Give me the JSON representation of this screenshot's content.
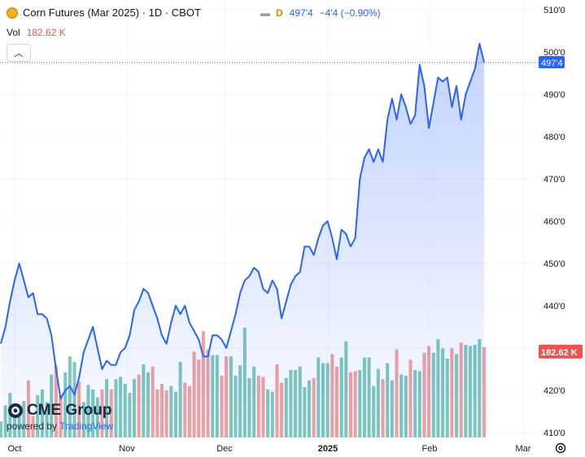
{
  "header": {
    "title": "Corn Futures (Mar 2025) · 1D · CBOT",
    "exchange_badge": "D",
    "last_price": "497'4",
    "change": "−4'4 (−0.90%)",
    "volume_label": "Vol",
    "volume_value": "182.62 K"
  },
  "logo": {
    "brand": "CME Group",
    "powered_prefix": "powered by",
    "powered_brand": "TradingView"
  },
  "icons": {
    "coin": "corn-coin-icon",
    "flag": "flag-icon",
    "collapse": "chevron-up-icon",
    "settings": "gear-icon"
  },
  "colors": {
    "line": "#2962ff",
    "area": "#2962ff",
    "volume_up": "#7fc8bd",
    "volume_down": "#f2a1a0",
    "price_badge": "#2962ff",
    "volume_badge": "#ef5350"
  },
  "chart_data": {
    "type": "area",
    "symbol": "Corn Futures (Mar 2025)",
    "interval": "1D",
    "ylim": [
      410,
      510
    ],
    "y_ticks": [
      "510'0",
      "500'0",
      "490'0",
      "480'0",
      "470'0",
      "460'0",
      "450'0",
      "440'0",
      "430'0",
      "420'0",
      "410'0"
    ],
    "x_ticks": [
      "Oct",
      "Nov",
      "Dec",
      "2025",
      "Feb",
      "Mar"
    ],
    "current_price_label": "497'4",
    "current_price": 497.5,
    "current_volume_label": "182.62 K",
    "price": [
      431,
      435,
      441,
      446,
      450,
      446,
      442,
      443,
      438,
      438,
      437,
      433,
      425,
      418,
      420,
      421,
      419,
      423,
      429,
      432,
      435,
      430,
      425,
      427,
      426,
      426,
      429,
      430,
      433,
      439,
      441,
      444,
      443,
      440,
      437,
      433,
      431,
      436,
      440,
      438,
      440,
      436,
      434,
      432,
      428,
      428,
      433,
      433,
      432,
      430,
      434,
      438,
      443,
      446,
      447,
      449,
      448,
      444,
      443,
      446,
      444,
      437,
      441,
      445,
      447,
      448,
      454,
      454,
      452,
      456,
      459,
      460,
      456,
      451,
      458,
      457,
      454,
      456,
      470,
      475,
      477,
      474,
      477,
      474,
      484,
      489,
      484,
      490,
      487,
      483,
      485,
      497,
      492,
      482,
      488,
      494,
      493,
      494,
      487,
      492,
      484,
      490,
      493,
      496,
      502,
      497.5
    ],
    "volume_direction": [
      "up",
      "up",
      "up",
      "up",
      "up",
      "up",
      "down",
      "down",
      "up",
      "up",
      "up",
      "up",
      "down",
      "down",
      "up",
      "up",
      "up",
      "down",
      "up",
      "up",
      "up",
      "up",
      "down",
      "up",
      "down",
      "up",
      "up",
      "up",
      "up",
      "up",
      "down",
      "up",
      "up",
      "down",
      "down",
      "down",
      "down",
      "up",
      "up",
      "up",
      "down",
      "down",
      "down",
      "down",
      "down",
      "down",
      "up",
      "up",
      "down",
      "down",
      "up",
      "up",
      "up",
      "up",
      "up",
      "up",
      "down",
      "down",
      "up",
      "up",
      "down",
      "down",
      "up",
      "up",
      "up",
      "up",
      "up",
      "up",
      "down",
      "up",
      "up",
      "up",
      "down",
      "down",
      "up",
      "up",
      "down",
      "down",
      "up",
      "up",
      "up",
      "up",
      "up",
      "down",
      "up",
      "up",
      "down",
      "up",
      "up",
      "down",
      "up",
      "up",
      "down",
      "down",
      "up",
      "up",
      "up",
      "up",
      "down",
      "up",
      "down",
      "up",
      "up",
      "up",
      "up",
      "down"
    ],
    "volume_index": [
      14,
      28,
      39,
      20,
      25,
      32,
      50,
      19,
      37,
      42,
      31,
      55,
      63,
      36,
      57,
      71,
      66,
      49,
      31,
      46,
      42,
      35,
      42,
      51,
      42,
      51,
      53,
      47,
      39,
      51,
      55,
      64,
      57,
      62,
      42,
      47,
      41,
      45,
      40,
      66,
      48,
      45,
      75,
      68,
      93,
      77,
      72,
      72,
      54,
      71,
      71,
      54,
      63,
      96,
      52,
      62,
      54,
      53,
      42,
      40,
      64,
      48,
      52,
      59,
      59,
      62,
      44,
      50,
      52,
      70,
      65,
      65,
      73,
      62,
      70,
      84,
      57,
      58,
      59,
      70,
      70,
      45,
      60,
      51,
      65,
      50,
      77,
      55,
      54,
      68,
      59,
      58,
      74,
      80,
      74,
      86,
      78,
      69,
      78,
      73,
      83,
      81,
      80,
      81,
      86,
      79
    ]
  }
}
